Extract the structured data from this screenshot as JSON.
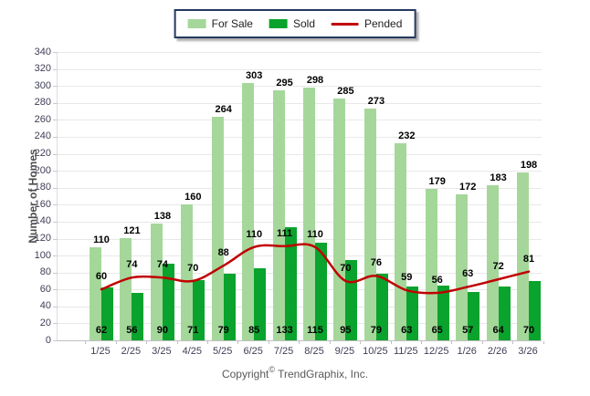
{
  "chart_data": {
    "type": "bar",
    "title": "",
    "categories": [
      "1/25",
      "2/25",
      "3/25",
      "4/25",
      "5/25",
      "6/25",
      "7/25",
      "8/25",
      "9/25",
      "10/25",
      "11/25",
      "12/25",
      "1/26",
      "2/26",
      "3/26"
    ],
    "series": [
      {
        "name": "For Sale",
        "type": "bar",
        "color": "#a5d79b",
        "values": [
          110,
          121,
          138,
          160,
          264,
          303,
          295,
          298,
          285,
          273,
          232,
          179,
          172,
          183,
          198
        ]
      },
      {
        "name": "Sold",
        "type": "bar",
        "color": "#0aa32d",
        "values": [
          62,
          56,
          90,
          71,
          79,
          85,
          133,
          115,
          95,
          79,
          63,
          65,
          57,
          64,
          70
        ]
      },
      {
        "name": "Pended",
        "type": "line",
        "color": "#c00000",
        "values": [
          60,
          74,
          74,
          70,
          88,
          110,
          111,
          110,
          70,
          76,
          59,
          56,
          63,
          72,
          81
        ]
      }
    ],
    "xlabel": "",
    "ylabel": "Number of Homes",
    "ylim": [
      0,
      340
    ],
    "ytick_step": 20,
    "grid": true,
    "legend_position": "top-center"
  },
  "footer": {
    "copyright_prefix": "Copyright",
    "copyright_symbol": "©",
    "copyright_suffix": "TrendGraphix, Inc."
  }
}
